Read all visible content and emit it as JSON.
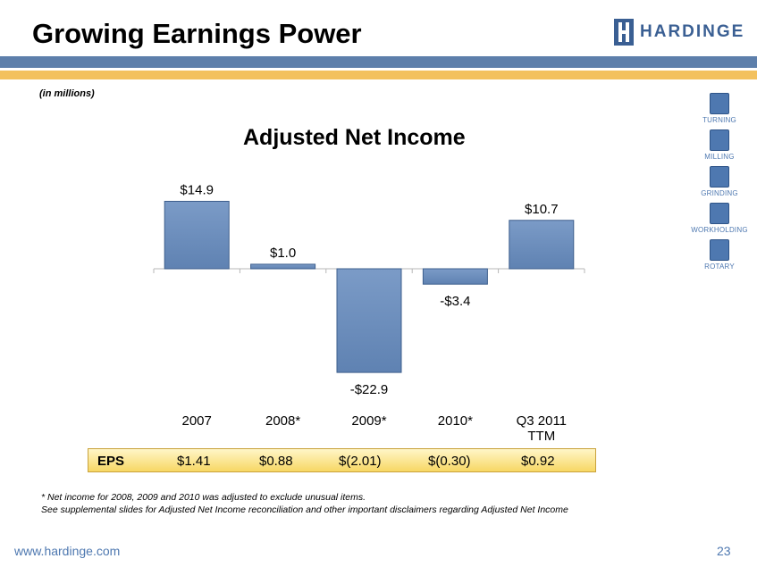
{
  "header": {
    "title": "Growing Earnings Power"
  },
  "logo": {
    "text": "HARDINGE",
    "color": "#3a5f93"
  },
  "subtitle": "(in millions)",
  "sidebar": {
    "items": [
      {
        "label": "TURNING",
        "icon": "turning-icon"
      },
      {
        "label": "MILLING",
        "icon": "milling-icon"
      },
      {
        "label": "GRINDING",
        "icon": "grinding-icon"
      },
      {
        "label": "WORKHOLDING",
        "icon": "workholding-icon"
      },
      {
        "label": "ROTARY",
        "icon": "rotary-icon"
      }
    ]
  },
  "chart_data": {
    "type": "bar",
    "title": "Adjusted Net Income",
    "categories": [
      "2007",
      "2008*",
      "2009*",
      "2010*",
      "Q3 2011 TTM"
    ],
    "values": [
      14.9,
      1.0,
      -22.9,
      -3.4,
      10.7
    ],
    "data_labels": [
      "$14.9",
      "$1.0",
      "-$22.9",
      "-$3.4",
      "$10.7"
    ],
    "bar_color": "#5f82b2",
    "grid": false,
    "yaxis_visible": false
  },
  "eps": {
    "label": "EPS",
    "values": [
      "$1.41",
      "$0.88",
      "$(2.01)",
      "$(0.30)",
      "$0.92"
    ]
  },
  "footnote": {
    "line1": "*  Net income for 2008, 2009 and 2010 was adjusted to exclude unusual items.",
    "line2": "See supplemental slides for Adjusted Net Income reconciliation  and other important disclaimers regarding Adjusted Net Income"
  },
  "footer": {
    "url": "www.hardinge.com",
    "page": "23"
  }
}
